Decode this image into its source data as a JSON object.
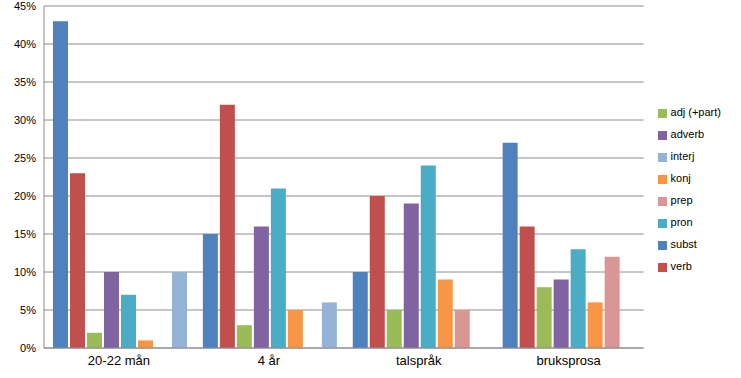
{
  "chart_data": {
    "type": "bar",
    "categories": [
      "20-22 mån",
      "4 år",
      "talspråk",
      "bruksprosa"
    ],
    "series": [
      {
        "name": "subst",
        "color": "#4F81BD",
        "values": [
          43,
          15,
          10,
          27
        ]
      },
      {
        "name": "verb",
        "color": "#C0504D",
        "values": [
          23,
          32,
          20,
          16
        ]
      },
      {
        "name": "adj (+part)",
        "color": "#9BBB59",
        "values": [
          2,
          3,
          5,
          8
        ]
      },
      {
        "name": "adverb",
        "color": "#8064A2",
        "values": [
          10,
          16,
          19,
          9
        ]
      },
      {
        "name": "pron",
        "color": "#4BACC6",
        "values": [
          7,
          21,
          24,
          13
        ]
      },
      {
        "name": "konj",
        "color": "#F79646",
        "values": [
          1,
          5,
          9,
          6
        ]
      },
      {
        "name": "prep",
        "color": "#D99694",
        "values": [
          null,
          null,
          5,
          12
        ]
      },
      {
        "name": "interj",
        "color": "#95B3D7",
        "values": [
          10,
          6,
          null,
          null
        ]
      }
    ],
    "ylim": [
      0,
      45
    ],
    "yticks": [
      {
        "value": 0,
        "label": "0%"
      },
      {
        "value": 5,
        "label": "5%"
      },
      {
        "value": 10,
        "label": "10%"
      },
      {
        "value": 15,
        "label": "15%"
      },
      {
        "value": 20,
        "label": "20%"
      },
      {
        "value": 25,
        "label": "25%"
      },
      {
        "value": 30,
        "label": "30%"
      },
      {
        "value": 35,
        "label": "35%"
      },
      {
        "value": 40,
        "label": "40%"
      },
      {
        "value": 45,
        "label": "45%"
      }
    ],
    "grid": true,
    "legend": "right"
  }
}
